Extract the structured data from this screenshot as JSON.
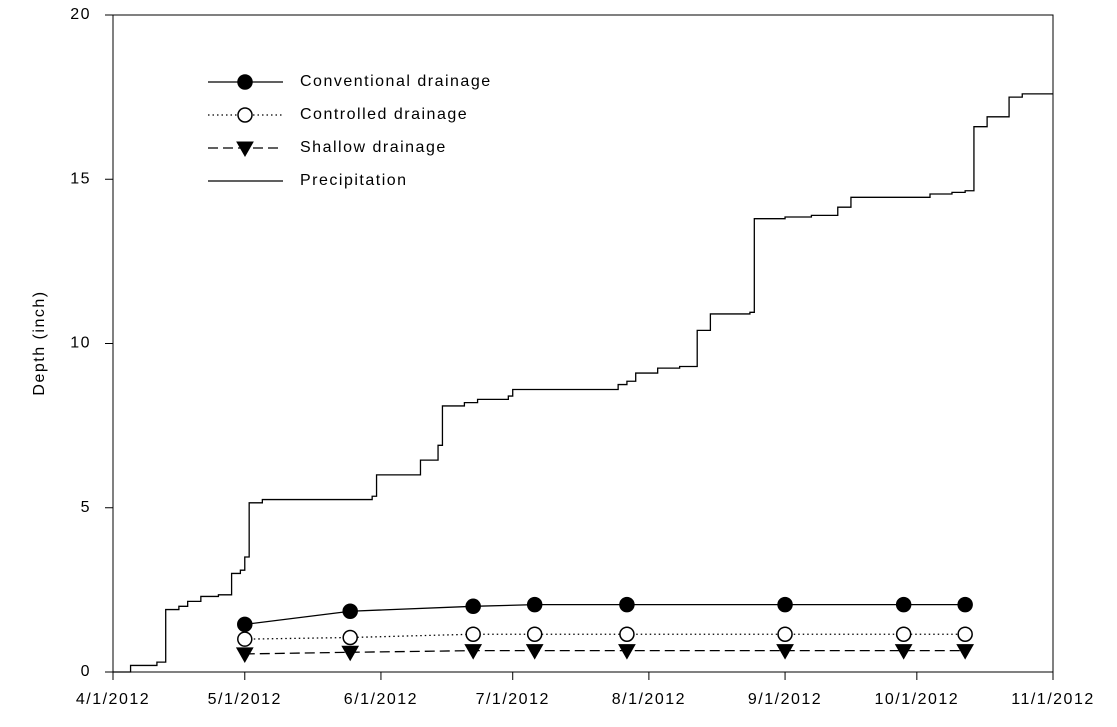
{
  "chart_data": {
    "type": "line",
    "y_label": "Depth (inch)",
    "xlim": [
      "4/1/2012",
      "11/1/2012"
    ],
    "xticks": [
      "4/1/2012",
      "5/1/2012",
      "6/1/2012",
      "7/1/2012",
      "8/1/2012",
      "9/1/2012",
      "10/1/2012",
      "11/1/2012"
    ],
    "ylim": [
      0,
      20
    ],
    "yticks": [
      0,
      5,
      10,
      15,
      20
    ],
    "legend": "upper-left",
    "series": [
      {
        "name": "Conventional drainage",
        "color": "#000000",
        "line_style": "solid",
        "marker": "circle",
        "marker_fill": "#000000",
        "step": false,
        "x": [
          "5/1/2012",
          "5/25/2012",
          "6/22/2012",
          "7/6/2012",
          "7/27/2012",
          "9/1/2012",
          "9/28/2012",
          "10/12/2012"
        ],
        "values": [
          1.45,
          1.85,
          2.0,
          2.05,
          2.05,
          2.05,
          2.05,
          2.05
        ]
      },
      {
        "name": "Controlled drainage",
        "color": "#000000",
        "line_style": "dotted",
        "marker": "circle",
        "marker_fill": "#ffffff",
        "step": false,
        "x": [
          "5/1/2012",
          "5/25/2012",
          "6/22/2012",
          "7/6/2012",
          "7/27/2012",
          "9/1/2012",
          "9/28/2012",
          "10/12/2012"
        ],
        "values": [
          1.0,
          1.05,
          1.15,
          1.15,
          1.15,
          1.15,
          1.15,
          1.15
        ]
      },
      {
        "name": "Shallow drainage",
        "color": "#000000",
        "line_style": "dashed",
        "marker": "triangle-down",
        "marker_fill": "#000000",
        "step": false,
        "x": [
          "5/1/2012",
          "5/25/2012",
          "6/22/2012",
          "7/6/2012",
          "7/27/2012",
          "9/1/2012",
          "9/28/2012",
          "10/12/2012"
        ],
        "values": [
          0.55,
          0.6,
          0.65,
          0.65,
          0.65,
          0.65,
          0.65,
          0.65
        ]
      },
      {
        "name": "Precipitation",
        "color": "#000000",
        "line_style": "solid",
        "marker": null,
        "marker_fill": null,
        "step": true,
        "x": [
          "4/1/2012",
          "4/5/2012",
          "4/11/2012",
          "4/13/2012",
          "4/16/2012",
          "4/18/2012",
          "4/21/2012",
          "4/25/2012",
          "4/28/2012",
          "4/30/2012",
          "5/1/2012",
          "5/2/2012",
          "5/5/2012",
          "5/30/2012",
          "5/31/2012",
          "6/10/2012",
          "6/14/2012",
          "6/15/2012",
          "6/20/2012",
          "6/23/2012",
          "6/30/2012",
          "7/1/2012",
          "7/25/2012",
          "7/27/2012",
          "7/29/2012",
          "8/3/2012",
          "8/8/2012",
          "8/12/2012",
          "8/15/2012",
          "8/24/2012",
          "8/25/2012",
          "9/1/2012",
          "9/7/2012",
          "9/13/2012",
          "9/16/2012",
          "10/4/2012",
          "10/9/2012",
          "10/12/2012",
          "10/14/2012",
          "10/17/2012",
          "10/22/2012",
          "10/25/2012",
          "11/1/2012"
        ],
        "values": [
          0,
          0.2,
          0.3,
          1.9,
          2.0,
          2.15,
          2.3,
          2.35,
          3.0,
          3.1,
          3.5,
          5.15,
          5.25,
          5.35,
          6.0,
          6.45,
          6.9,
          8.1,
          8.2,
          8.3,
          8.4,
          8.6,
          8.75,
          8.85,
          9.1,
          9.25,
          9.3,
          10.4,
          10.9,
          10.95,
          13.8,
          13.85,
          13.9,
          14.15,
          14.45,
          14.55,
          14.6,
          14.65,
          16.6,
          16.9,
          17.5,
          17.6,
          17.6
        ]
      }
    ]
  }
}
